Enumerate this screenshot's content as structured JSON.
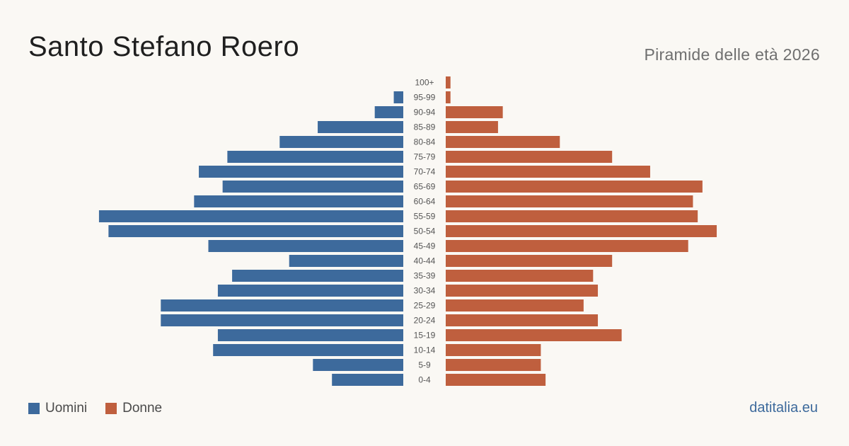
{
  "header": {
    "title": "Santo Stefano Roero",
    "subtitle": "Piramide delle età 2026"
  },
  "legend": {
    "men_label": "Uomini",
    "women_label": "Donne"
  },
  "brand": "datitalia.eu",
  "colors": {
    "men": "#3d6a9c",
    "women": "#bf5f3e",
    "brand": "#3d6a9c"
  },
  "chart_data": {
    "type": "bar",
    "orientation": "horizontal-pyramid",
    "categories": [
      "100+",
      "95-99",
      "90-94",
      "85-89",
      "80-84",
      "75-79",
      "70-74",
      "65-69",
      "60-64",
      "55-59",
      "50-54",
      "45-49",
      "40-44",
      "35-39",
      "30-34",
      "25-29",
      "20-24",
      "15-19",
      "10-14",
      "5-9",
      "0-4"
    ],
    "series": [
      {
        "name": "Uomini",
        "values": [
          0,
          2,
          6,
          18,
          26,
          37,
          43,
          38,
          44,
          64,
          62,
          41,
          24,
          36,
          39,
          51,
          51,
          39,
          40,
          19,
          15
        ]
      },
      {
        "name": "Donne",
        "values": [
          1,
          1,
          12,
          11,
          24,
          35,
          43,
          54,
          52,
          53,
          57,
          51,
          35,
          31,
          32,
          29,
          32,
          37,
          20,
          20,
          21
        ]
      }
    ],
    "grid": false,
    "legend_position": "bottom-left"
  }
}
